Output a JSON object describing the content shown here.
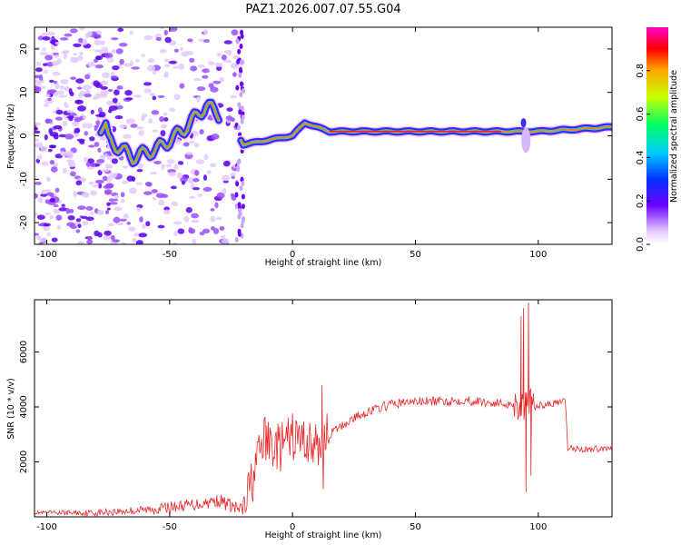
{
  "title": "PAZ1.2026.007.07.55.G04",
  "chart_data": [
    {
      "type": "heatmap",
      "name": "spectrogram",
      "xlabel": "Height of straight line (km)",
      "ylabel": "Frequency (Hz)",
      "xlim": [
        -105,
        130
      ],
      "ylim": [
        -25,
        25
      ],
      "xticks": [
        -100,
        -50,
        0,
        50,
        100
      ],
      "yticks": [
        -20,
        -10,
        0,
        10,
        20
      ],
      "colorbar": {
        "label": "Normalized spectral amplitude",
        "range": [
          0,
          1
        ],
        "ticks": [
          "0.0",
          "0.2",
          "0.4",
          "0.6",
          "0.8"
        ]
      },
      "trend": [
        {
          "x": -75,
          "y": -1
        },
        {
          "x": -65,
          "y": -5
        },
        {
          "x": -55,
          "y": -3
        },
        {
          "x": -45,
          "y": 1
        },
        {
          "x": -35,
          "y": 7
        },
        {
          "x": -25,
          "y": 3
        },
        {
          "x": -20,
          "y": -2
        },
        {
          "x": -10,
          "y": -1
        },
        {
          "x": 0,
          "y": 0
        },
        {
          "x": 5,
          "y": 3
        },
        {
          "x": 10,
          "y": 2
        },
        {
          "x": 15,
          "y": 1
        },
        {
          "x": 60,
          "y": 1
        },
        {
          "x": 90,
          "y": 1
        },
        {
          "x": 100,
          "y": 1
        },
        {
          "x": 115,
          "y": 1.5
        },
        {
          "x": 130,
          "y": 2
        }
      ]
    },
    {
      "type": "line",
      "name": "snr",
      "xlabel": "Height of straight line (km)",
      "ylabel": "SNR (10 * v/v)",
      "xlim": [
        -105,
        130
      ],
      "ylim": [
        0,
        7900
      ],
      "xticks": [
        -100,
        -50,
        0,
        50,
        100
      ],
      "yticks": [
        2000,
        4000,
        6000
      ],
      "series": [
        {
          "name": "SNR",
          "color": "#e8272a",
          "points": [
            {
              "x": -105,
              "y": 150
            },
            {
              "x": -80,
              "y": 150
            },
            {
              "x": -60,
              "y": 250
            },
            {
              "x": -40,
              "y": 450
            },
            {
              "x": -30,
              "y": 600
            },
            {
              "x": -20,
              "y": 200
            },
            {
              "x": -15,
              "y": 1800
            },
            {
              "x": -12,
              "y": 2800
            },
            {
              "x": -5,
              "y": 2500
            },
            {
              "x": 0,
              "y": 2900
            },
            {
              "x": 5,
              "y": 2800
            },
            {
              "x": 10,
              "y": 2500
            },
            {
              "x": 15,
              "y": 3000
            },
            {
              "x": 20,
              "y": 3300
            },
            {
              "x": 25,
              "y": 3600
            },
            {
              "x": 30,
              "y": 3800
            },
            {
              "x": 40,
              "y": 4100
            },
            {
              "x": 50,
              "y": 4200
            },
            {
              "x": 60,
              "y": 4200
            },
            {
              "x": 70,
              "y": 4250
            },
            {
              "x": 80,
              "y": 4150
            },
            {
              "x": 90,
              "y": 4100
            },
            {
              "x": 100,
              "y": 4050
            },
            {
              "x": 108,
              "y": 4150
            },
            {
              "x": 111,
              "y": 4200
            },
            {
              "x": 112,
              "y": 2500
            },
            {
              "x": 120,
              "y": 2450
            },
            {
              "x": 130,
              "y": 2500
            }
          ],
          "spikes": [
            {
              "x": 93,
              "y": 7300
            },
            {
              "x": 94,
              "y": 7600
            },
            {
              "x": 95,
              "y": 900
            },
            {
              "x": 96,
              "y": 7800
            },
            {
              "x": 97,
              "y": 1500
            },
            {
              "x": 98,
              "y": 4500
            },
            {
              "x": 12,
              "y": 4800
            },
            {
              "x": 12.5,
              "y": 1000
            }
          ]
        }
      ]
    }
  ]
}
